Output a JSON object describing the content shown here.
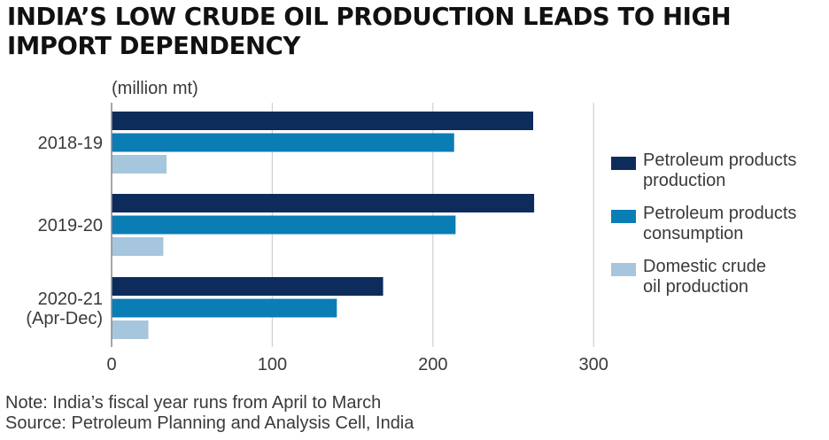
{
  "title_lines": [
    "INDIA’S LOW CRUDE OIL PRODUCTION LEADS TO HIGH",
    "IMPORT DEPENDENCY"
  ],
  "unit_label": "(million mt)",
  "note": "Note: India’s fiscal year runs from April to March",
  "source": "Source: Petroleum Planning and Analysis Cell, India",
  "colors": {
    "dark_navy": "#0d2c5c",
    "teal": "#0a7db5",
    "light_blue": "#a6c6dd",
    "grid": "#d0d0d0",
    "text": "#3a3a3a"
  },
  "chart_data": {
    "type": "bar",
    "orientation": "horizontal",
    "categories": [
      [
        "2018-19"
      ],
      [
        "2019-20"
      ],
      [
        "2020-21",
        "(Apr-Dec)"
      ]
    ],
    "series": [
      {
        "name": "Petroleum products production",
        "legend_lines": [
          "Petroleum products",
          "production"
        ],
        "color": "#0d2c5c",
        "values": [
          262.4,
          263.0,
          169.0
        ]
      },
      {
        "name": "Petroleum products consumption",
        "legend_lines": [
          "Petroleum products",
          "consumption"
        ],
        "color": "#0a7db5",
        "values": [
          213.2,
          214.1,
          140.2
        ]
      },
      {
        "name": "Domestic crude oil production",
        "legend_lines": [
          "Domestic crude",
          "oil production"
        ],
        "color": "#a6c6dd",
        "values": [
          34.2,
          32.2,
          22.9
        ]
      }
    ],
    "xlim": [
      0,
      300
    ],
    "xticks": [
      0,
      100,
      200,
      300
    ],
    "grid": true,
    "legend_position": "right"
  }
}
